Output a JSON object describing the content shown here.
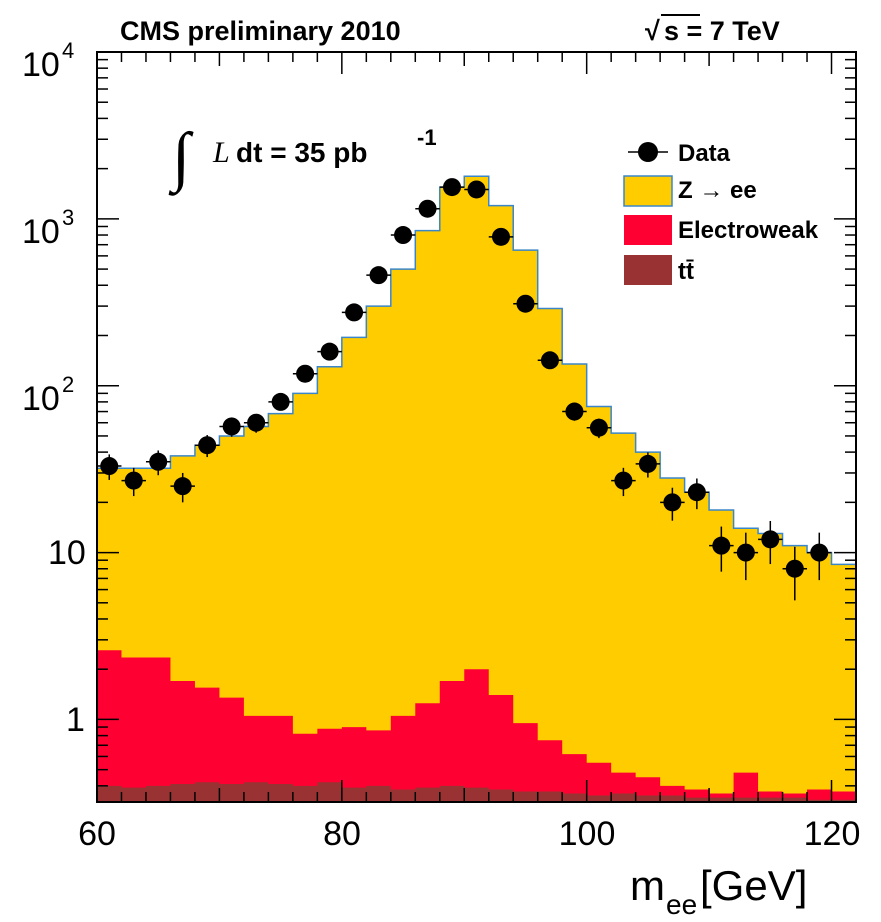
{
  "header": {
    "left": "CMS preliminary 2010",
    "right_sqrt": "√",
    "right": "s = 7 TeV"
  },
  "luminosity": {
    "integral": "∫",
    "symbol": "L",
    "text": " dt = 35 pb",
    "sup": "-1"
  },
  "axes": {
    "x_label_main": "m",
    "x_label_sub": "ee",
    "x_label_unit": " [GeV]",
    "x_ticks": [
      "60",
      "80",
      "100",
      "120"
    ],
    "y_ticks": [
      {
        "base": "10",
        "exp": "4"
      },
      {
        "base": "10",
        "exp": "3"
      },
      {
        "base": "10",
        "exp": "2"
      },
      {
        "base": "10",
        "exp": ""
      },
      {
        "base": "1",
        "exp": ""
      }
    ]
  },
  "chart_data": {
    "type": "bar",
    "title": "CMS preliminary 2010",
    "xlabel": "m_ee [GeV]",
    "ylabel": "",
    "x_range": [
      60,
      122
    ],
    "y_range": [
      0.32,
      10000
    ],
    "y_scale": "log",
    "bin_edges": [
      60,
      62,
      64,
      66,
      68,
      70,
      72,
      74,
      76,
      78,
      80,
      82,
      84,
      86,
      88,
      90,
      92,
      94,
      96,
      98,
      100,
      102,
      104,
      106,
      108,
      110,
      112,
      114,
      116,
      118,
      120,
      122
    ],
    "stack": [
      {
        "name": "Z → ee",
        "color": "#ffcc00",
        "edge_color": "#3a86c8",
        "totals": [
          32,
          32,
          32,
          38,
          44,
          50,
          57,
          68,
          90,
          130,
          195,
          300,
          500,
          850,
          1550,
          1800,
          1200,
          650,
          290,
          135,
          75,
          52,
          40,
          28,
          23,
          18,
          14,
          13,
          11,
          10,
          8.5
        ]
      },
      {
        "name": "Electroweak",
        "color": "#ff0033",
        "totals": [
          2.6,
          2.35,
          2.35,
          1.7,
          1.55,
          1.35,
          1.05,
          1.05,
          0.82,
          0.88,
          0.9,
          0.86,
          1.05,
          1.25,
          1.7,
          2.0,
          1.4,
          0.95,
          0.75,
          0.62,
          0.55,
          0.48,
          0.45,
          0.4,
          0.38,
          0.36,
          0.48,
          0.37,
          0.36,
          0.38,
          0.37
        ]
      },
      {
        "name": "tt̄",
        "color": "#993333",
        "totals": [
          0.4,
          0.39,
          0.4,
          0.41,
          0.42,
          0.41,
          0.42,
          0.41,
          0.4,
          0.42,
          0.39,
          0.4,
          0.38,
          0.39,
          0.4,
          0.39,
          0.38,
          0.37,
          0.37,
          0.36,
          0.35,
          0.36,
          0.35,
          0.35,
          0.34,
          0.34,
          0.34,
          0.34,
          0.34,
          0.33,
          0.33
        ]
      }
    ],
    "data_points": {
      "name": "Data",
      "x": [
        61,
        63,
        65,
        67,
        69,
        71,
        73,
        75,
        77,
        79,
        81,
        83,
        85,
        87,
        89,
        91,
        93,
        95,
        97,
        99,
        101,
        103,
        105,
        107,
        109,
        111,
        113,
        115,
        117,
        119
      ],
      "y": [
        33,
        27,
        35,
        25,
        44,
        57,
        60,
        80,
        118,
        160,
        275,
        460,
        800,
        1150,
        1550,
        1500,
        780,
        310,
        142,
        70,
        56,
        27,
        34,
        20,
        23,
        11,
        10,
        12,
        8,
        10
      ]
    },
    "legend": {
      "placement": "top-right",
      "entries": [
        "Data",
        "Z → ee",
        "Electroweak",
        "tt̄"
      ]
    }
  }
}
